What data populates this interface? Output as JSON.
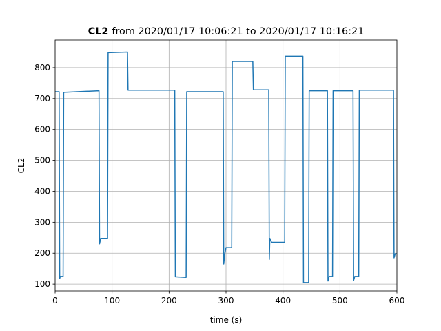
{
  "chart_data": {
    "type": "line",
    "title_variable": "CL2",
    "title_range": "from 2020/01/17 10:06:21 to 2020/01/17 10:16:21",
    "xlabel": "time (s)",
    "ylabel": "CL2",
    "x": [
      0,
      7,
      8,
      9,
      14,
      15,
      77,
      78,
      80,
      92,
      93,
      127,
      128,
      210,
      211,
      230,
      231,
      295,
      296,
      298,
      300,
      310,
      311,
      347,
      348,
      375,
      376,
      377,
      380,
      403,
      404,
      435,
      436,
      445,
      446,
      478,
      479,
      481,
      487,
      488,
      523,
      524,
      526,
      533,
      534,
      594,
      595,
      597,
      600
    ],
    "series": [
      {
        "name": "CL2",
        "color": "#1f77b4",
        "values": [
          722,
          722,
          118,
          125,
          125,
          720,
          725,
          230,
          248,
          248,
          848,
          850,
          727,
          727,
          124,
          122,
          722,
          722,
          165,
          200,
          218,
          218,
          820,
          820,
          728,
          728,
          180,
          248,
          235,
          235,
          837,
          837,
          105,
          105,
          725,
          725,
          110,
          125,
          125,
          725,
          725,
          112,
          125,
          125,
          727,
          727,
          185,
          198,
          198
        ]
      }
    ],
    "xlim": [
      0,
      600
    ],
    "ylim": [
      78,
      889
    ],
    "xticks": [
      0,
      100,
      200,
      300,
      400,
      500,
      600
    ],
    "yticks": [
      100,
      200,
      300,
      400,
      500,
      600,
      700,
      800
    ],
    "grid": true
  }
}
